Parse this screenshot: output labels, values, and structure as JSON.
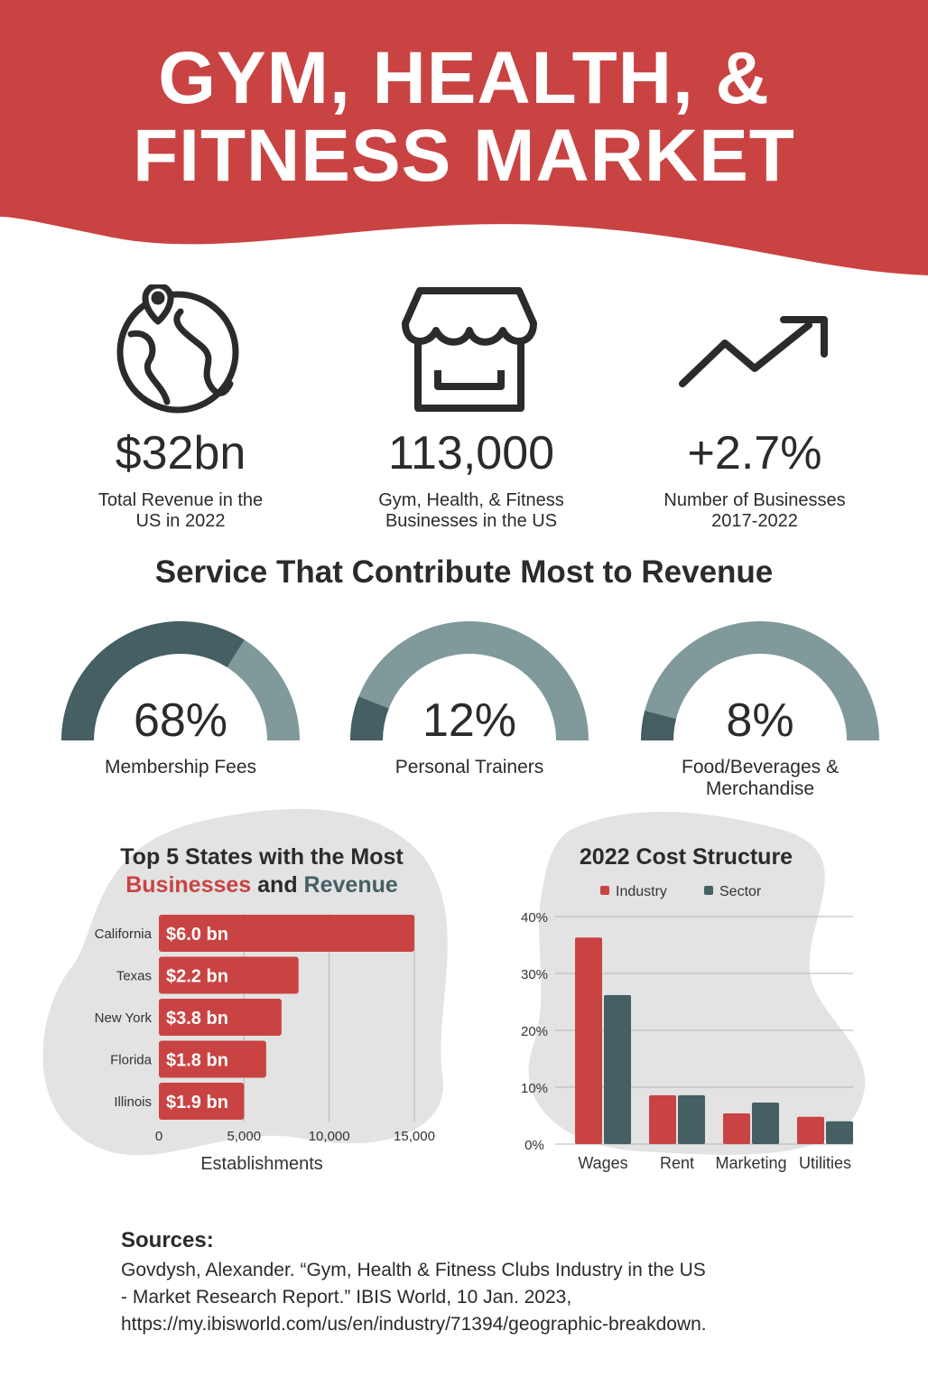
{
  "colors": {
    "red": "#c94342",
    "dark": "#455f63",
    "light": "#809a9c",
    "blob": "#e3e3e3"
  },
  "header": {
    "title_line1": "GYM, HEALTH, &",
    "title_line2": "FITNESS MARKET"
  },
  "stats": [
    {
      "icon": "globe-pin-icon",
      "value": "$32bn",
      "label1": "Total Revenue in the",
      "label2": "US in 2022"
    },
    {
      "icon": "storefront-icon",
      "value": "113,000",
      "label1": "Gym, Health, & Fitness",
      "label2": "Businesses in the US"
    },
    {
      "icon": "trend-up-arrow-icon",
      "value": "+2.7%",
      "label1": "Number of Businesses",
      "label2": "2017-2022"
    }
  ],
  "services": {
    "heading": "Service That Contribute Most to Revenue",
    "items": [
      {
        "percent": 68,
        "text": "68%",
        "label1": "Membership Fees",
        "label2": ""
      },
      {
        "percent": 12,
        "text": "12%",
        "label1": "Personal Trainers",
        "label2": ""
      },
      {
        "percent": 8,
        "text": "8%",
        "label1": "Food/Beverages &",
        "label2": "Merchandise"
      }
    ]
  },
  "chart_data": [
    {
      "type": "bar",
      "orientation": "horizontal",
      "title_line1": "Top 5 States with the Most",
      "title_red": "Businesses",
      "title_and": "and",
      "title_teal": "Revenue",
      "categories": [
        "California",
        "Texas",
        "New York",
        "Florida",
        "Illinois"
      ],
      "values": [
        15000,
        8200,
        7200,
        6300,
        5000
      ],
      "data_labels": [
        "$6.0 bn",
        "$2.2 bn",
        "$3.8 bn",
        "$1.8 bn",
        "$1.9 bn"
      ],
      "xlabel": "Establishments",
      "xlim": [
        0,
        15000
      ],
      "xticks": [
        0,
        5000,
        10000,
        15000
      ],
      "xtick_labels": [
        "0",
        "5,000",
        "10,000",
        "15,000"
      ],
      "grid": true
    },
    {
      "type": "bar",
      "title": "2022 Cost Structure",
      "categories": [
        "Wages",
        "Rent",
        "Marketing",
        "Utilities"
      ],
      "series": [
        {
          "name": "Industry",
          "values": [
            36.3,
            8.6,
            5.4,
            4.8
          ]
        },
        {
          "name": "Sector",
          "values": [
            26.2,
            8.6,
            7.3,
            4.0
          ]
        }
      ],
      "ylim": [
        0,
        40
      ],
      "yticks": [
        0,
        10,
        20,
        30,
        40
      ],
      "ytick_labels": [
        "0%",
        "10%",
        "20%",
        "30%",
        "40%"
      ],
      "legend": "top",
      "grid": true
    }
  ],
  "sources": {
    "heading": "Sources:",
    "line1": "Govdysh, Alexander. “Gym, Health & Fitness Clubs Industry in the US",
    "line2": "- Market Research Report.” IBIS World, 10 Jan. 2023,",
    "line3": "https://my.ibisworld.com/us/en/industry/71394/geographic-breakdown."
  }
}
